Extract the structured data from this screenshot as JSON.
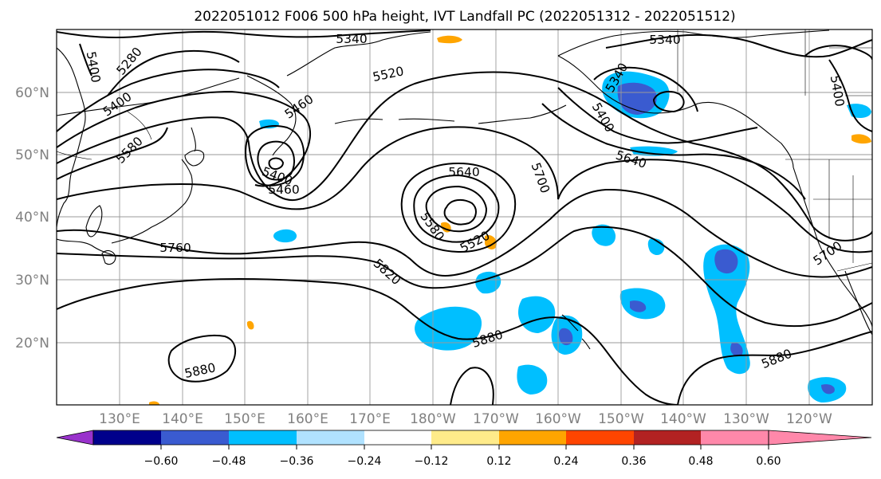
{
  "title": "2022051012 F006 500 hPa height, IVT Landfall PC (2022051312 - 2022051512)",
  "map": {
    "lat_labels": [
      "60°N",
      "50°N",
      "40°N",
      "30°N",
      "20°N"
    ],
    "lon_labels": [
      "130°E",
      "140°E",
      "150°E",
      "160°E",
      "170°E",
      "180°W",
      "170°W",
      "160°W",
      "150°W",
      "140°W",
      "130°W",
      "120°W"
    ],
    "contour_labels": [
      "5340",
      "5340",
      "5400",
      "5280",
      "5400",
      "5520",
      "5460",
      "5580",
      "5400",
      "5460",
      "5640",
      "5700",
      "5580",
      "5520",
      "5760",
      "5820",
      "5880",
      "5880",
      "5880",
      "5400",
      "5640",
      "5700",
      "5400",
      "5340"
    ]
  },
  "colorbar": {
    "tick_labels": [
      "−0.60",
      "−0.48",
      "−0.36",
      "−0.24",
      "−0.12",
      "0.12",
      "0.24",
      "0.36",
      "0.48",
      "0.60"
    ],
    "colors": [
      "#9932cc",
      "#00008b",
      "#3a5bd0",
      "#00bfff",
      "#b0e2ff",
      "#ffffff",
      "#ffeb8a",
      "#ffa500",
      "#ff4500",
      "#b22222",
      "#ff88aa"
    ]
  }
}
